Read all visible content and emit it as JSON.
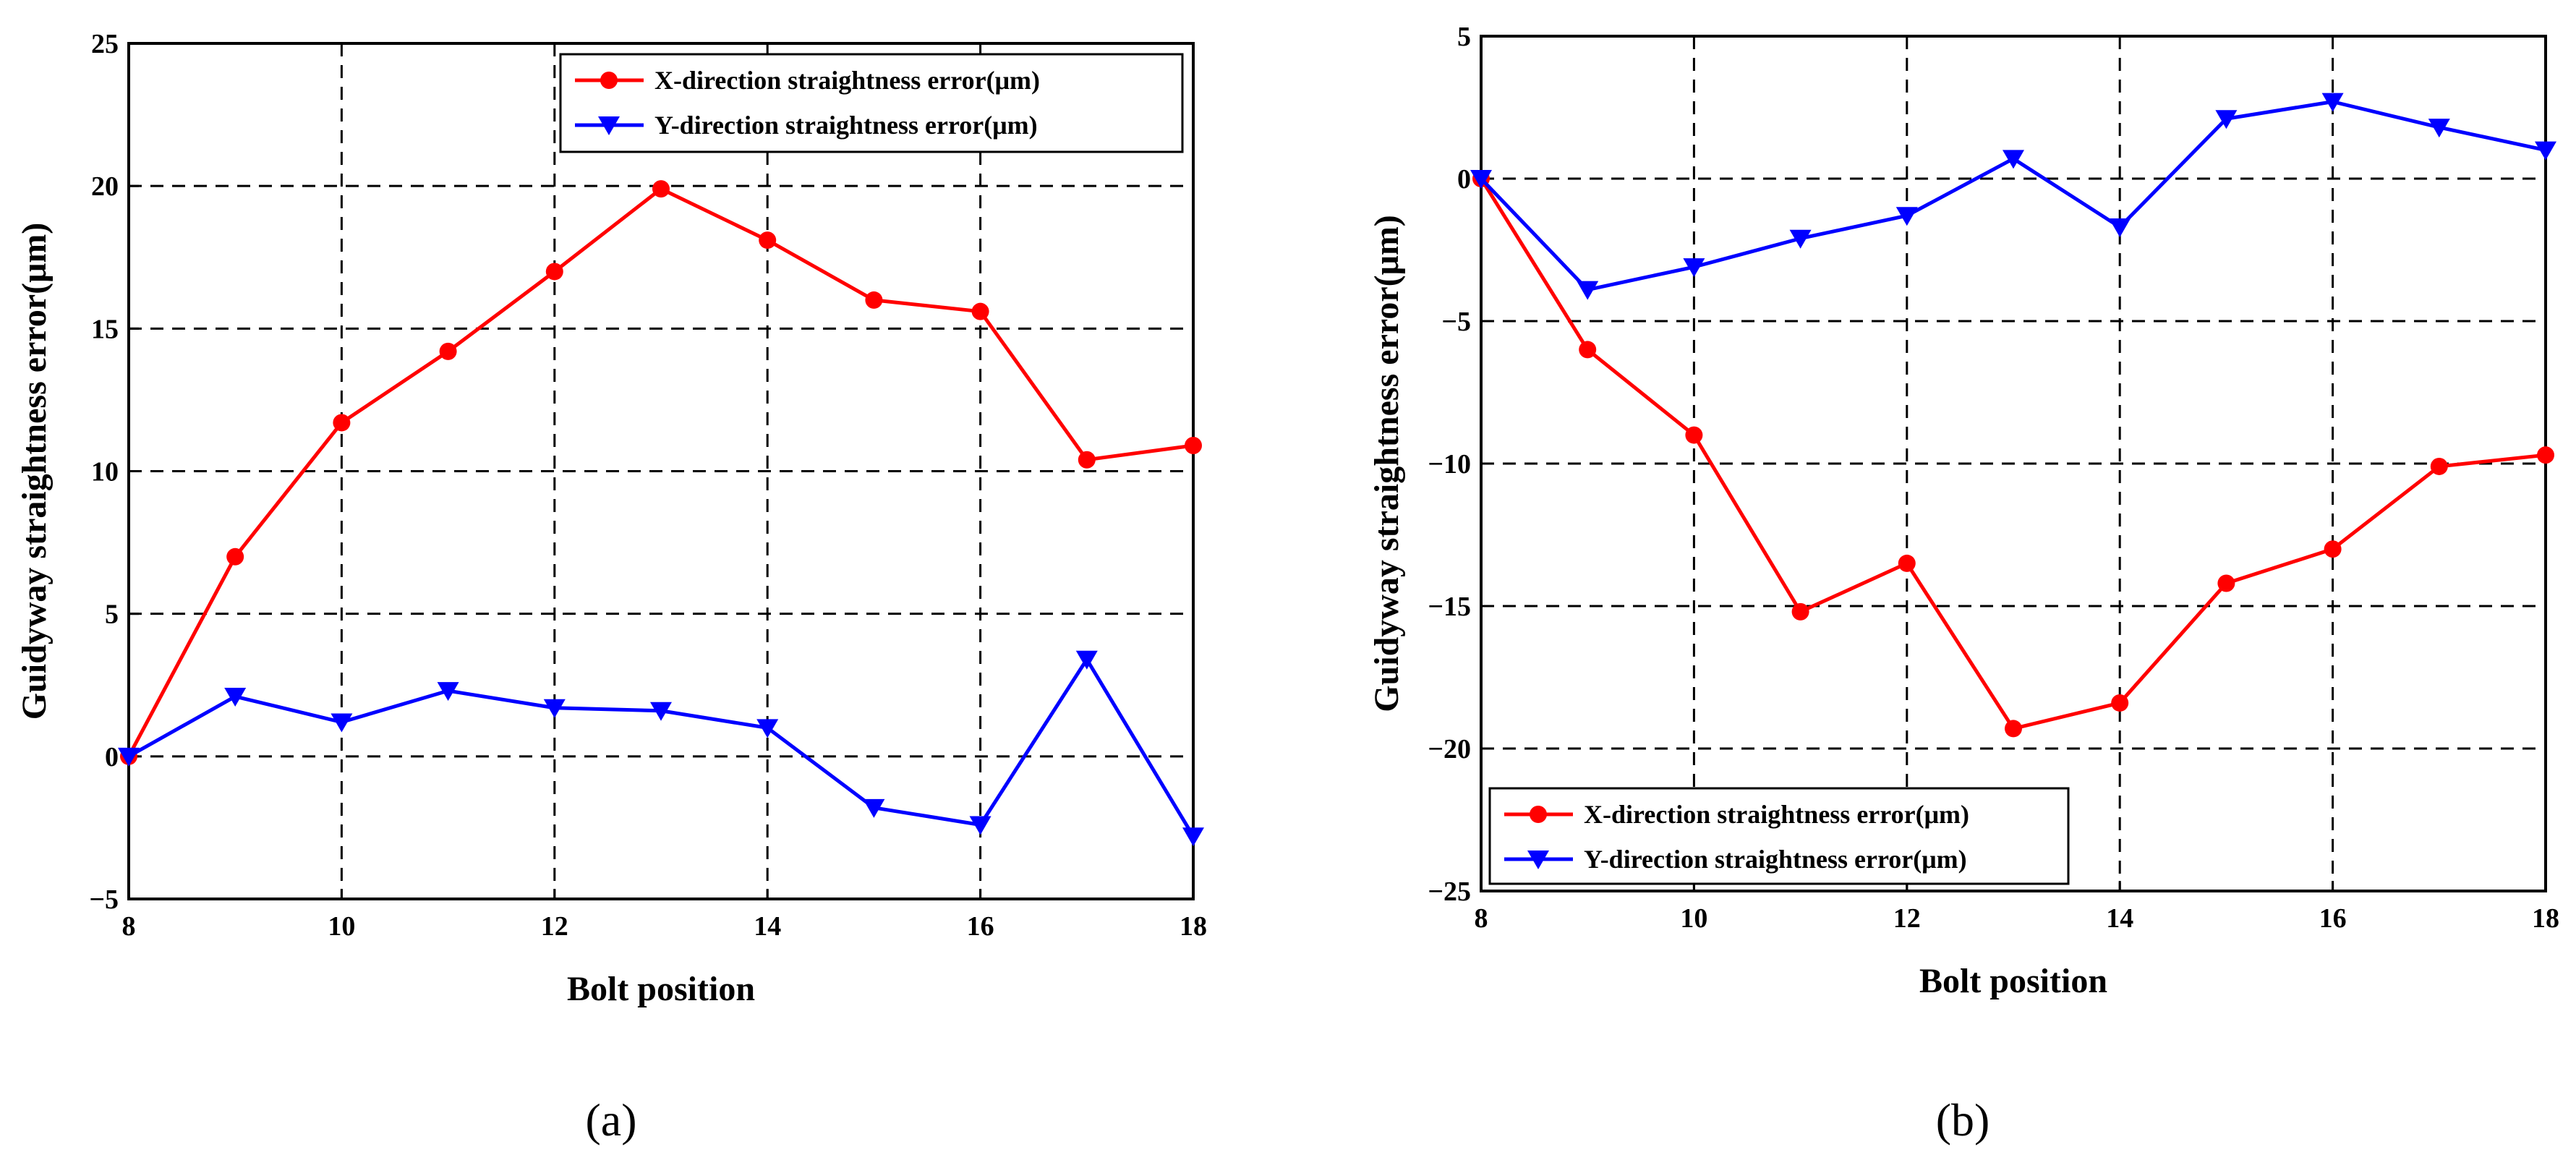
{
  "chart_data": [
    {
      "type": "line",
      "panel_label": "(a)",
      "xlabel": "Bolt position",
      "ylabel": "Guidyway straightness error(μm)",
      "xlim": [
        8,
        18
      ],
      "ylim": [
        -5,
        25
      ],
      "xticks": [
        8,
        10,
        12,
        14,
        16,
        18
      ],
      "yticks": [
        -5,
        0,
        5,
        10,
        15,
        20,
        25
      ],
      "x": [
        8,
        9,
        10,
        11,
        12,
        13,
        14,
        15,
        16,
        17,
        18
      ],
      "grid": true,
      "legend_position": "top-right",
      "series": [
        {
          "name": "X-direction straightness error(μm)",
          "color": "#ff0000",
          "marker": "circle",
          "values": [
            0,
            7.0,
            11.7,
            14.2,
            17.0,
            19.9,
            18.1,
            16.0,
            15.6,
            10.4,
            10.9
          ]
        },
        {
          "name": "Y-direction straightness error(μm)",
          "color": "#0000ff",
          "marker": "triangle-down",
          "values": [
            0,
            2.1,
            1.2,
            2.3,
            1.7,
            1.6,
            1.0,
            -1.8,
            -2.4,
            3.4,
            -2.8
          ]
        }
      ]
    },
    {
      "type": "line",
      "panel_label": "(b)",
      "xlabel": "Bolt position",
      "ylabel": "Guidyway straightness error(μm)",
      "xlim": [
        8,
        18
      ],
      "ylim": [
        -25,
        5
      ],
      "xticks": [
        8,
        10,
        12,
        14,
        16,
        18
      ],
      "yticks": [
        -25,
        -20,
        -15,
        -10,
        -5,
        0,
        5
      ],
      "x": [
        8,
        9,
        10,
        11,
        12,
        13,
        14,
        15,
        16,
        17,
        18
      ],
      "grid": true,
      "legend_position": "bottom-left",
      "series": [
        {
          "name": "X-direction straightness error(μm)",
          "color": "#ff0000",
          "marker": "circle",
          "values": [
            0,
            -6.0,
            -9.0,
            -15.2,
            -13.5,
            -19.3,
            -18.4,
            -14.2,
            -13.0,
            -10.1,
            -9.7
          ]
        },
        {
          "name": "Y-direction straightness error(μm)",
          "color": "#0000ff",
          "marker": "triangle-down",
          "values": [
            0,
            -3.9,
            -3.1,
            -2.1,
            -1.3,
            0.7,
            -1.7,
            2.1,
            2.7,
            1.8,
            1.0
          ]
        }
      ]
    }
  ]
}
